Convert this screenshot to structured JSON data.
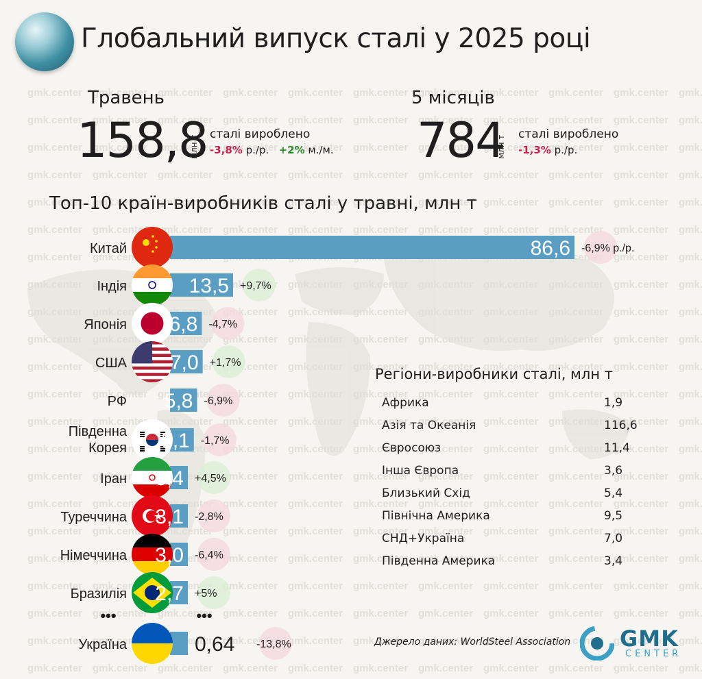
{
  "header": {
    "title": "Глобальний випуск сталі у 2025 році"
  },
  "kpis": {
    "may": {
      "label": "Травень",
      "value": "158,8",
      "unit": "млн т",
      "text": "сталі вироблено",
      "yoy": "-3,8%",
      "yoy_suffix": "р./р.",
      "mom": "+2%",
      "mom_suffix": "м./м."
    },
    "five_months": {
      "label": "5 місяців",
      "value": "784",
      "unit": "млн т",
      "text": "сталі вироблено",
      "yoy": "-1,3%",
      "yoy_suffix": "р./р."
    }
  },
  "chart_data": {
    "type": "bar",
    "title": "Топ-10 країн-виробників сталі у травні, млн т",
    "categories": [
      "Китай",
      "Індія",
      "Японія",
      "США",
      "РФ",
      "Південна Корея",
      "Іран",
      "Туреччина",
      "Німеччина",
      "Бразилія",
      "Україна"
    ],
    "values": [
      86.6,
      13.5,
      6.8,
      7.0,
      5.8,
      5.1,
      3.4,
      3.1,
      3.0,
      2.7,
      0.64
    ],
    "value_labels": [
      "86,6",
      "13,5",
      "6,8",
      "7,0",
      "5,8",
      "5,1",
      "3,4",
      "3,1",
      "3,0",
      "2,7",
      "0,64"
    ],
    "changes": [
      "-6,9% р./р.",
      "+9,7%",
      "-4,7%",
      "+1,7%",
      "-6,9%",
      "-1,7%",
      "+4,5%",
      "-2,8%",
      "-6,4%",
      "+5%",
      "-13,8%"
    ],
    "ellipsis": "•••",
    "flags": [
      "china-flag-icon",
      "india-flag-icon",
      "japan-flag-icon",
      "usa-flag-icon",
      "",
      "south-korea-flag-icon",
      "iran-flag-icon",
      "turkey-flag-icon",
      "germany-flag-icon",
      "brazil-flag-icon",
      "ukraine-flag-icon"
    ],
    "bar_color": "#5b9ec4"
  },
  "regions": {
    "title": "Регіони-виробники сталі, млн т",
    "items": [
      {
        "name": "Африка",
        "value": "1,9"
      },
      {
        "name": "Азія та Океанія",
        "value": "116,6"
      },
      {
        "name": "Євросоюз",
        "value": "11,4"
      },
      {
        "name": "Інша Європа",
        "value": "3,6"
      },
      {
        "name": "Близький Схід",
        "value": "5,4"
      },
      {
        "name": "Північна Америка",
        "value": "9,5"
      },
      {
        "name": "СНД+Україна",
        "value": "7,0"
      },
      {
        "name": "Південна Америка",
        "value": "3,4"
      }
    ]
  },
  "footer": {
    "source": "Джерело даних: WorldSteel Association",
    "logo": "GMK",
    "logo_sub": "CENTER"
  },
  "watermark": "gmk.center"
}
